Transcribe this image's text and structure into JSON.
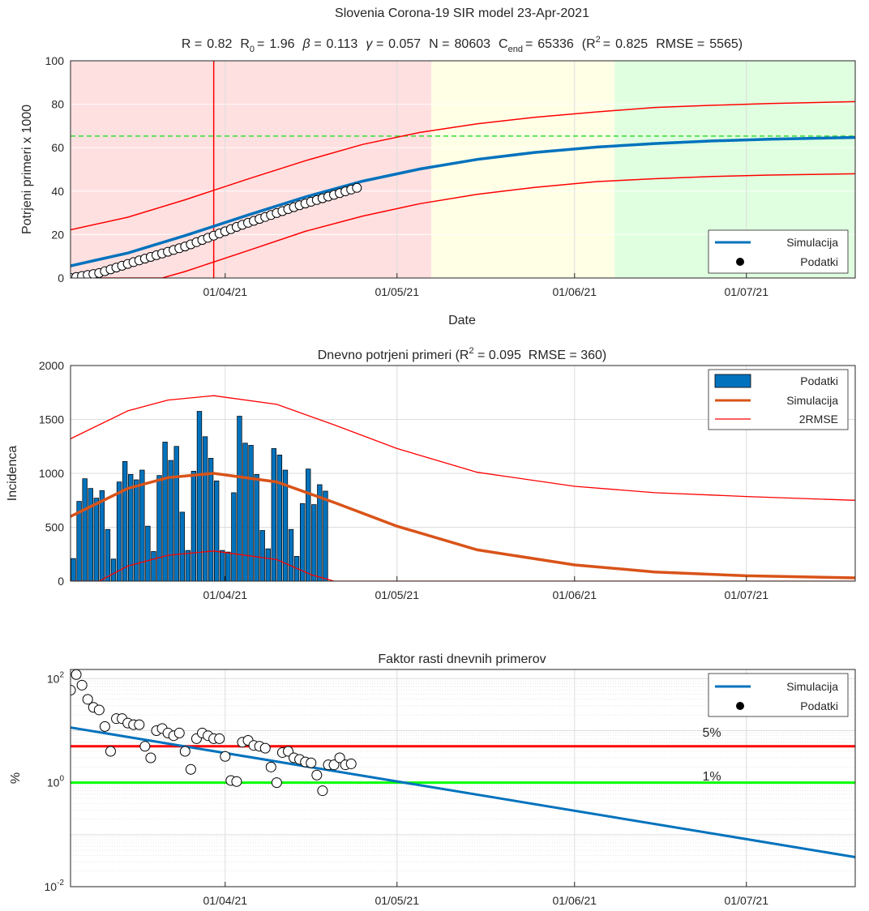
{
  "figure": {
    "panel1": {
      "title": "Slovenia Corona-19 SIR model 23-Apr-2021",
      "subtitle": {
        "r_label": "R =",
        "r_value": "0.82",
        "r0_label": "R",
        "r0_sub": "0",
        "r0_eq": "=",
        "r0_value": "1.96",
        "beta_label": "β =",
        "beta_value": "0.113",
        "gamma_label": "γ =",
        "gamma_value": "0.057",
        "n_label": "N =",
        "n_value": "80603",
        "cend_label": "C",
        "cend_sub": "end",
        "cend_eq": "=",
        "cend_value": "65336",
        "r2_open": "(R",
        "r2_sup": "2",
        "r2_eq": "=",
        "r2_value": "0.825",
        "rmse_label": "RMSE =",
        "rmse_value": "5565)"
      },
      "xlabel": "Date",
      "ylabel": "Potrjeni primeri x 1000",
      "legend": [
        "Simulacija",
        "Podatki"
      ]
    },
    "panel2": {
      "title_pre": "Dnevno potrjeni primeri (R",
      "title_sup": "2",
      "title_post": " = 0.095  RMSE = 360)",
      "ylabel": "Incidenca",
      "legend": [
        "Podatki",
        "Simulacija",
        "2RMSE"
      ]
    },
    "panel3": {
      "title": "Faktor rasti dnevnih primerov",
      "ylabel": "%",
      "legend": [
        "Simulacija",
        "Podatki"
      ],
      "line_labels": [
        "5%",
        "1%"
      ]
    }
  },
  "colors": {
    "blue": "#0072bd",
    "orange": "#d95319",
    "red": "#ff0000",
    "green": "#00ff00",
    "zone_red": "#ffe0e0",
    "zone_yellow": "#ffffe6",
    "zone_green": "#e0ffe0"
  },
  "chart_data": [
    {
      "type": "line",
      "title": "Slovenia Corona-19 SIR model 23-Apr-2021",
      "xlabel": "Date",
      "ylabel": "Potrjeni primeri x 1000",
      "x_ticks": [
        "01/04/21",
        "01/05/21",
        "01/06/21",
        "01/07/21"
      ],
      "y_ticks": [
        "0",
        "20",
        "40",
        "60",
        "80",
        "100"
      ],
      "xlim": [
        "2021-03-05",
        "2021-07-20"
      ],
      "ylim": [
        0,
        100
      ],
      "grid": true,
      "legend_position": "bottom-right",
      "background_zones": [
        {
          "from": "2021-03-05",
          "to": "2021-05-07",
          "color": "red"
        },
        {
          "from": "2021-05-07",
          "to": "2021-06-08",
          "color": "yellow"
        },
        {
          "from": "2021-06-08",
          "to": "2021-07-20",
          "color": "green"
        }
      ],
      "reference_lines": {
        "vertical_date": "2021-03-30",
        "c_end": 65.336
      },
      "series": [
        {
          "name": "Simulacija",
          "x": [
            "2021-03-05",
            "2021-03-15",
            "2021-03-25",
            "2021-04-05",
            "2021-04-15",
            "2021-04-25",
            "2021-05-05",
            "2021-05-15",
            "2021-05-25",
            "2021-06-05",
            "2021-06-15",
            "2021-06-25",
            "2021-07-05",
            "2021-07-20"
          ],
          "y": [
            5.6,
            11.5,
            19.5,
            29.0,
            37.3,
            44.6,
            50.2,
            54.6,
            57.8,
            60.3,
            61.9,
            63.1,
            63.9,
            64.7
          ]
        },
        {
          "x": [
            "2021-03-05",
            "2021-03-15",
            "2021-03-25",
            "2021-04-05",
            "2021-04-15",
            "2021-04-25",
            "2021-05-05",
            "2021-05-15",
            "2021-05-25",
            "2021-06-05",
            "2021-06-15",
            "2021-06-25",
            "2021-07-05",
            "2021-07-20"
          ],
          "y": [
            22.2,
            28.0,
            36.0,
            45.6,
            54.0,
            61.5,
            67.0,
            71.0,
            74.0,
            76.5,
            78.5,
            79.5,
            80.3,
            81.2
          ]
        },
        {
          "x": [
            "2021-03-05",
            "2021-03-21",
            "2021-03-25",
            "2021-04-05",
            "2021-04-15",
            "2021-04-25",
            "2021-05-05",
            "2021-05-15",
            "2021-05-25",
            "2021-06-05",
            "2021-06-15",
            "2021-06-25",
            "2021-07-05",
            "2021-07-20"
          ],
          "y": [
            0,
            0,
            3.0,
            12.6,
            21.5,
            28.5,
            34.2,
            38.5,
            41.7,
            44.4,
            45.7,
            46.7,
            47.4,
            48.0
          ]
        },
        {
          "name": "Podatki",
          "x": [
            "2021-03-05",
            "2021-03-10",
            "2021-03-15",
            "2021-03-20",
            "2021-03-25",
            "2021-03-30",
            "2021-04-04",
            "2021-04-09",
            "2021-04-14",
            "2021-04-19",
            "2021-04-24"
          ],
          "y": [
            0,
            2.3,
            6.5,
            10.5,
            14.5,
            19.5,
            24.5,
            29.0,
            33.5,
            37.5,
            41.5
          ]
        }
      ]
    },
    {
      "type": "bar",
      "title": "Dnevno potrjeni primeri (R2 = 0.095  RMSE = 360)",
      "ylabel": "Incidenca",
      "x_ticks": [
        "01/04/21",
        "01/05/21",
        "01/06/21",
        "01/07/21"
      ],
      "y_ticks": [
        "0",
        "500",
        "1000",
        "1500",
        "2000"
      ],
      "xlim": [
        "2021-03-05",
        "2021-07-20"
      ],
      "ylim": [
        0,
        2000
      ],
      "grid": true,
      "legend_position": "top-right",
      "series": [
        {
          "name": "Podatki",
          "x_start": "2021-03-05",
          "values": [
            210,
            740,
            950,
            860,
            770,
            840,
            480,
            205,
            920,
            1110,
            990,
            940,
            1030,
            510,
            275,
            980,
            1290,
            1120,
            1250,
            640,
            285,
            1020,
            1575,
            1340,
            1140,
            930,
            285,
            270,
            820,
            1530,
            1280,
            1260,
            990,
            470,
            300,
            1230,
            1170,
            1030,
            480,
            230,
            720,
            1040,
            710,
            895,
            835
          ]
        },
        {
          "name": "Simulacija",
          "x": [
            "2021-03-05",
            "2021-03-15",
            "2021-03-22",
            "2021-03-30",
            "2021-04-10",
            "2021-04-20",
            "2021-05-01",
            "2021-05-15",
            "2021-06-01",
            "2021-06-15",
            "2021-07-01",
            "2021-07-20"
          ],
          "y": [
            600,
            860,
            960,
            1000,
            920,
            730,
            510,
            290,
            150,
            85,
            50,
            30
          ]
        },
        {
          "name": "2RMSE",
          "x": [
            "2021-03-05",
            "2021-03-15",
            "2021-03-22",
            "2021-03-30",
            "2021-04-10",
            "2021-04-20",
            "2021-05-01",
            "2021-05-15",
            "2021-06-01",
            "2021-06-15",
            "2021-07-01",
            "2021-07-20"
          ],
          "y": [
            1320,
            1580,
            1680,
            1720,
            1640,
            1450,
            1230,
            1010,
            880,
            820,
            785,
            750
          ]
        },
        {
          "x": [
            "2021-03-05",
            "2021-03-10",
            "2021-03-15",
            "2021-03-22",
            "2021-03-30",
            "2021-04-10",
            "2021-04-16",
            "2021-04-20",
            "2021-07-20"
          ],
          "y": [
            0,
            0,
            140,
            240,
            280,
            200,
            60,
            0,
            0
          ]
        }
      ]
    },
    {
      "type": "line",
      "title": "Faktor rasti dnevnih primerov",
      "ylabel": "%",
      "x_ticks": [
        "01/04/21",
        "01/05/21",
        "01/06/21",
        "01/07/21"
      ],
      "y_ticks": [
        "10-2",
        "100",
        "102"
      ],
      "xlim": [
        "2021-03-05",
        "2021-07-20"
      ],
      "ylim": [
        0.01,
        150
      ],
      "yscale": "log",
      "grid": true,
      "legend_position": "top-right",
      "threshold_lines": [
        {
          "label": "5%",
          "y": 5,
          "color": "red"
        },
        {
          "label": "1%",
          "y": 1,
          "color": "green"
        }
      ],
      "series": [
        {
          "name": "Simulacija",
          "x": [
            "2021-03-05",
            "2021-07-20"
          ],
          "y": [
            11.5,
            0.037
          ]
        },
        {
          "name": "Podatki",
          "x": [
            "2021-03-05",
            "2021-03-06",
            "2021-03-07",
            "2021-03-08",
            "2021-03-09",
            "2021-03-10",
            "2021-03-11",
            "2021-03-12",
            "2021-03-13",
            "2021-03-14",
            "2021-03-15",
            "2021-03-16",
            "2021-03-17",
            "2021-03-18",
            "2021-03-19",
            "2021-03-20",
            "2021-03-21",
            "2021-03-22",
            "2021-03-23",
            "2021-03-24",
            "2021-03-25",
            "2021-03-26",
            "2021-03-27",
            "2021-03-28",
            "2021-03-29",
            "2021-03-30",
            "2021-03-31",
            "2021-04-01",
            "2021-04-02",
            "2021-04-03",
            "2021-04-04",
            "2021-04-05",
            "2021-04-06",
            "2021-04-07",
            "2021-04-08",
            "2021-04-09",
            "2021-04-10",
            "2021-04-11",
            "2021-04-12",
            "2021-04-13",
            "2021-04-14",
            "2021-04-15",
            "2021-04-16",
            "2021-04-17",
            "2021-04-18",
            "2021-04-19",
            "2021-04-20",
            "2021-04-21",
            "2021-04-22",
            "2021-04-23"
          ],
          "y": [
            60,
            120,
            75,
            40,
            28,
            25,
            12,
            4,
            17,
            17,
            14,
            13,
            13,
            5,
            3,
            10,
            11,
            9,
            8,
            9,
            4,
            1.8,
            7,
            9,
            8,
            7,
            7,
            3.2,
            1.1,
            1.05,
            6,
            6.5,
            5.2,
            5,
            4.6,
            2,
            1,
            3.8,
            4,
            3,
            2.8,
            2.5,
            2.4,
            1.4,
            0.7,
            2.2,
            2.2,
            3,
            2.2,
            2.3
          ]
        }
      ]
    }
  ]
}
